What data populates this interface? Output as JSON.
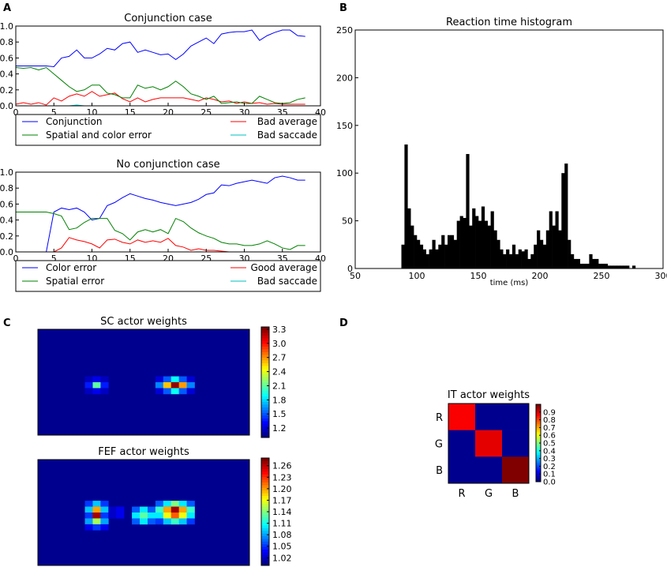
{
  "panel_letters": {
    "a": "A",
    "b": "B",
    "c": "C",
    "d": "D"
  },
  "colors": {
    "blue": "#0000ff",
    "green": "#008000",
    "red": "#ff0000",
    "cyan": "#00bfbf",
    "bar": "#000000",
    "heatmap_bg": "#00008f"
  },
  "chart_data": [
    {
      "id": "conjunction",
      "type": "line",
      "title": "Conjunction case",
      "xlim": [
        0,
        40
      ],
      "ylim": [
        0,
        1.0
      ],
      "x_ticks": [
        0,
        5,
        10,
        15,
        20,
        25,
        30,
        35,
        40
      ],
      "y_ticks": [
        "0.0",
        "0.2",
        "0.4",
        "0.6",
        "0.8",
        "1.0"
      ],
      "legend": [
        "Conjunction",
        "Bad average",
        "Spatial and color error",
        "Bad saccade"
      ],
      "series": [
        {
          "name": "Conjunction",
          "color": "#0000ff",
          "values": [
            0.5,
            0.5,
            0.5,
            0.5,
            0.5,
            0.49,
            0.6,
            0.62,
            0.7,
            0.6,
            0.6,
            0.65,
            0.72,
            0.7,
            0.78,
            0.8,
            0.67,
            0.7,
            0.67,
            0.64,
            0.65,
            0.58,
            0.65,
            0.75,
            0.8,
            0.85,
            0.78,
            0.9,
            0.92,
            0.93,
            0.93,
            0.95,
            0.82,
            0.88,
            0.92,
            0.95,
            0.95,
            0.88,
            0.87
          ]
        },
        {
          "name": "Bad average",
          "color": "#ff0000",
          "values": [
            0.02,
            0.04,
            0.02,
            0.04,
            0.01,
            0.1,
            0.06,
            0.12,
            0.15,
            0.12,
            0.18,
            0.12,
            0.14,
            0.16,
            0.09,
            0.05,
            0.1,
            0.05,
            0.08,
            0.1,
            0.1,
            0.1,
            0.1,
            0.08,
            0.06,
            0.1,
            0.08,
            0.05,
            0.06,
            0.03,
            0.05,
            0.03,
            0.04,
            0.02,
            0.03,
            0.02,
            0.02,
            0.02,
            0.02
          ]
        },
        {
          "name": "Spatial and color error",
          "color": "#008000",
          "values": [
            0.48,
            0.47,
            0.48,
            0.45,
            0.48,
            0.4,
            0.32,
            0.24,
            0.18,
            0.2,
            0.26,
            0.26,
            0.16,
            0.14,
            0.1,
            0.1,
            0.26,
            0.22,
            0.24,
            0.2,
            0.24,
            0.31,
            0.24,
            0.15,
            0.12,
            0.08,
            0.12,
            0.03,
            0.04,
            0.05,
            0.03,
            0.03,
            0.12,
            0.08,
            0.04,
            0.03,
            0.04,
            0.08,
            0.1
          ]
        },
        {
          "name": "Bad saccade",
          "color": "#00bfbf",
          "values": [
            0,
            0,
            0,
            0,
            0,
            0,
            0,
            0,
            0.01,
            0,
            0,
            0,
            0,
            0,
            0,
            0,
            0,
            0,
            0,
            0,
            0,
            0,
            0,
            0,
            0,
            0,
            0,
            0,
            0,
            0,
            0,
            0,
            0,
            0,
            0,
            0,
            0,
            0,
            0
          ]
        }
      ]
    },
    {
      "id": "noconjunction",
      "type": "line",
      "title": "No conjunction case",
      "xlim": [
        0,
        40
      ],
      "ylim": [
        0,
        1.0
      ],
      "x_ticks": [
        0,
        5,
        10,
        15,
        20,
        25,
        30,
        35,
        40
      ],
      "y_ticks": [
        "0.0",
        "0.2",
        "0.4",
        "0.6",
        "0.8",
        "1.0"
      ],
      "legend": [
        "Color error",
        "Good average",
        "Spatial error",
        "Bad saccade"
      ],
      "series": [
        {
          "name": "Color error",
          "color": "#0000ff",
          "values": [
            0,
            0,
            0,
            0,
            0,
            0.5,
            0.55,
            0.53,
            0.55,
            0.5,
            0.4,
            0.42,
            0.58,
            0.62,
            0.68,
            0.73,
            0.7,
            0.67,
            0.65,
            0.62,
            0.6,
            0.58,
            0.6,
            0.62,
            0.66,
            0.72,
            0.74,
            0.84,
            0.83,
            0.86,
            0.88,
            0.9,
            0.88,
            0.86,
            0.93,
            0.95,
            0.93,
            0.9,
            0.9
          ]
        },
        {
          "name": "Good average",
          "color": "#ff0000",
          "values": [
            0,
            0,
            0,
            0,
            0,
            0,
            0.05,
            0.18,
            0.15,
            0.13,
            0.1,
            0.05,
            0.15,
            0.16,
            0.12,
            0.1,
            0.15,
            0.12,
            0.14,
            0.12,
            0.17,
            0.08,
            0.06,
            0.02,
            0.04,
            0.02,
            0.02,
            0.01,
            0,
            0,
            0,
            0,
            0,
            0,
            0,
            0,
            0,
            0,
            0
          ]
        },
        {
          "name": "Spatial error",
          "color": "#008000",
          "values": [
            0.5,
            0.5,
            0.5,
            0.5,
            0.5,
            0.48,
            0.45,
            0.28,
            0.3,
            0.37,
            0.42,
            0.42,
            0.42,
            0.27,
            0.23,
            0.15,
            0.25,
            0.28,
            0.25,
            0.28,
            0.23,
            0.42,
            0.38,
            0.3,
            0.24,
            0.2,
            0.17,
            0.12,
            0.1,
            0.1,
            0.08,
            0.08,
            0.1,
            0.14,
            0.1,
            0.05,
            0.03,
            0.08,
            0.08
          ]
        },
        {
          "name": "Bad saccade",
          "color": "#00bfbf",
          "values": [
            0,
            0,
            0,
            0,
            0,
            0,
            0,
            0,
            0,
            0,
            0,
            0,
            0,
            0,
            0,
            0,
            0,
            0,
            0,
            0,
            0,
            0,
            0,
            0,
            0,
            0,
            0,
            0,
            0,
            0,
            0,
            0,
            0,
            0,
            0,
            0,
            0,
            0,
            0
          ]
        }
      ]
    },
    {
      "id": "histogram",
      "type": "bar",
      "title": "Reaction time histogram",
      "xlabel": "time (ms)",
      "xlim": [
        50,
        300
      ],
      "ylim": [
        0,
        250
      ],
      "x_ticks": [
        50,
        100,
        150,
        200,
        250,
        300
      ],
      "y_ticks": [
        0,
        50,
        100,
        150,
        200,
        250
      ],
      "bin_width": 2.5,
      "bins": [
        [
          87.5,
          25
        ],
        [
          90,
          130
        ],
        [
          92.5,
          63
        ],
        [
          95,
          45
        ],
        [
          97.5,
          35
        ],
        [
          100,
          30
        ],
        [
          102.5,
          25
        ],
        [
          105,
          20
        ],
        [
          107.5,
          15
        ],
        [
          110,
          20
        ],
        [
          112.5,
          30
        ],
        [
          115,
          20
        ],
        [
          117.5,
          25
        ],
        [
          120,
          35
        ],
        [
          122.5,
          25
        ],
        [
          125,
          35
        ],
        [
          127.5,
          35
        ],
        [
          130,
          30
        ],
        [
          132.5,
          50
        ],
        [
          135,
          55
        ],
        [
          137.5,
          53
        ],
        [
          140,
          120
        ],
        [
          142.5,
          45
        ],
        [
          145,
          63
        ],
        [
          147.5,
          55
        ],
        [
          150,
          50
        ],
        [
          152.5,
          65
        ],
        [
          155,
          50
        ],
        [
          157.5,
          45
        ],
        [
          160,
          60
        ],
        [
          162.5,
          40
        ],
        [
          165,
          30
        ],
        [
          167.5,
          20
        ],
        [
          170,
          15
        ],
        [
          172.5,
          20
        ],
        [
          175,
          15
        ],
        [
          177.5,
          25
        ],
        [
          180,
          15
        ],
        [
          182.5,
          20
        ],
        [
          185,
          18
        ],
        [
          187.5,
          20
        ],
        [
          190,
          10
        ],
        [
          192.5,
          15
        ],
        [
          195,
          25
        ],
        [
          197.5,
          40
        ],
        [
          200,
          30
        ],
        [
          202.5,
          25
        ],
        [
          205,
          40
        ],
        [
          207.5,
          60
        ],
        [
          210,
          45
        ],
        [
          212.5,
          60
        ],
        [
          215,
          40
        ],
        [
          217.5,
          100
        ],
        [
          220,
          110
        ],
        [
          222.5,
          30
        ],
        [
          225,
          15
        ],
        [
          227.5,
          10
        ],
        [
          230,
          10
        ],
        [
          232.5,
          5
        ],
        [
          235,
          5
        ],
        [
          237.5,
          5
        ],
        [
          240,
          15
        ],
        [
          242.5,
          10
        ],
        [
          245,
          10
        ],
        [
          247.5,
          5
        ],
        [
          250,
          5
        ],
        [
          252.5,
          5
        ],
        [
          255,
          3
        ],
        [
          257.5,
          3
        ],
        [
          260,
          3
        ],
        [
          262.5,
          3
        ],
        [
          265,
          3
        ],
        [
          267.5,
          3
        ],
        [
          270,
          3
        ],
        [
          275,
          3
        ]
      ]
    },
    {
      "id": "sc",
      "type": "heatmap",
      "title": "SC actor weights",
      "vmin": 1.0,
      "vmax": 3.35,
      "colorbar_ticks": [
        "3.3",
        "3.0",
        "2.7",
        "2.4",
        "2.1",
        "1.8",
        "1.5",
        "1.2"
      ],
      "colorbar_values": [
        3.3,
        3.0,
        2.7,
        2.4,
        2.1,
        1.8,
        1.5,
        1.2
      ],
      "grid_size": [
        27,
        18
      ],
      "blobs": [
        {
          "col": 7,
          "row": 9,
          "values": [
            [
              1.15,
              1.25,
              1.15
            ],
            [
              1.35,
              2.1,
              1.35
            ],
            [
              1.15,
              1.25,
              1.15
            ]
          ]
        },
        {
          "col": 17,
          "row": 9,
          "values": [
            [
              1.2,
              1.5,
              1.9,
              1.5,
              1.2
            ],
            [
              1.6,
              2.6,
              3.3,
              2.7,
              1.6
            ],
            [
              1.2,
              1.5,
              1.9,
              1.5,
              1.2
            ]
          ]
        }
      ]
    },
    {
      "id": "fef",
      "type": "heatmap",
      "title": "FEF actor weights",
      "vmin": 1.0,
      "vmax": 1.28,
      "colorbar_ticks": [
        "1.26",
        "1.23",
        "1.20",
        "1.17",
        "1.14",
        "1.11",
        "1.08",
        "1.05",
        "1.02"
      ],
      "colorbar_values": [
        1.26,
        1.23,
        1.2,
        1.17,
        1.14,
        1.11,
        1.08,
        1.05,
        1.02
      ],
      "grid_size": [
        27,
        18
      ],
      "blobs": [
        {
          "col": 7,
          "row": 9,
          "values": [
            [
              1.05,
              1.09,
              1.05
            ],
            [
              1.09,
              1.2,
              1.09
            ],
            [
              1.05,
              1.27,
              1.05
            ],
            [
              1.08,
              1.15,
              1.08
            ],
            [
              1.03,
              1.05,
              1.03
            ]
          ]
        },
        {
          "col": 10,
          "row": 9,
          "values": [
            [
              1.02,
              1.03
            ],
            [
              1.02,
              1.03
            ]
          ]
        },
        {
          "col": 13,
          "row": 9,
          "values": [
            [
              1.06,
              1.1,
              1.06
            ],
            [
              1.1,
              1.13,
              1.1
            ],
            [
              1.06,
              1.1,
              1.06
            ]
          ]
        },
        {
          "col": 17,
          "row": 9,
          "values": [
            [
              1.06,
              1.1,
              1.14,
              1.1,
              1.06
            ],
            [
              1.12,
              1.2,
              1.27,
              1.2,
              1.12
            ],
            [
              1.1,
              1.17,
              1.22,
              1.17,
              1.1
            ],
            [
              1.05,
              1.09,
              1.12,
              1.09,
              1.05
            ]
          ]
        }
      ]
    },
    {
      "id": "it",
      "type": "heatmap",
      "title": "IT actor weights",
      "vmin": 0.0,
      "vmax": 1.0,
      "colorbar_ticks": [
        "0.9",
        "0.8",
        "0.7",
        "0.6",
        "0.5",
        "0.4",
        "0.3",
        "0.2",
        "0.1",
        "0.0"
      ],
      "colorbar_values": [
        0.9,
        0.8,
        0.7,
        0.6,
        0.5,
        0.4,
        0.3,
        0.2,
        0.1,
        0.0
      ],
      "row_labels": [
        "R",
        "G",
        "B"
      ],
      "col_labels": [
        "R",
        "G",
        "B"
      ],
      "matrix": [
        [
          0.88,
          0.0,
          0.0
        ],
        [
          0.0,
          0.9,
          0.0
        ],
        [
          0.0,
          0.0,
          1.0
        ]
      ]
    }
  ]
}
